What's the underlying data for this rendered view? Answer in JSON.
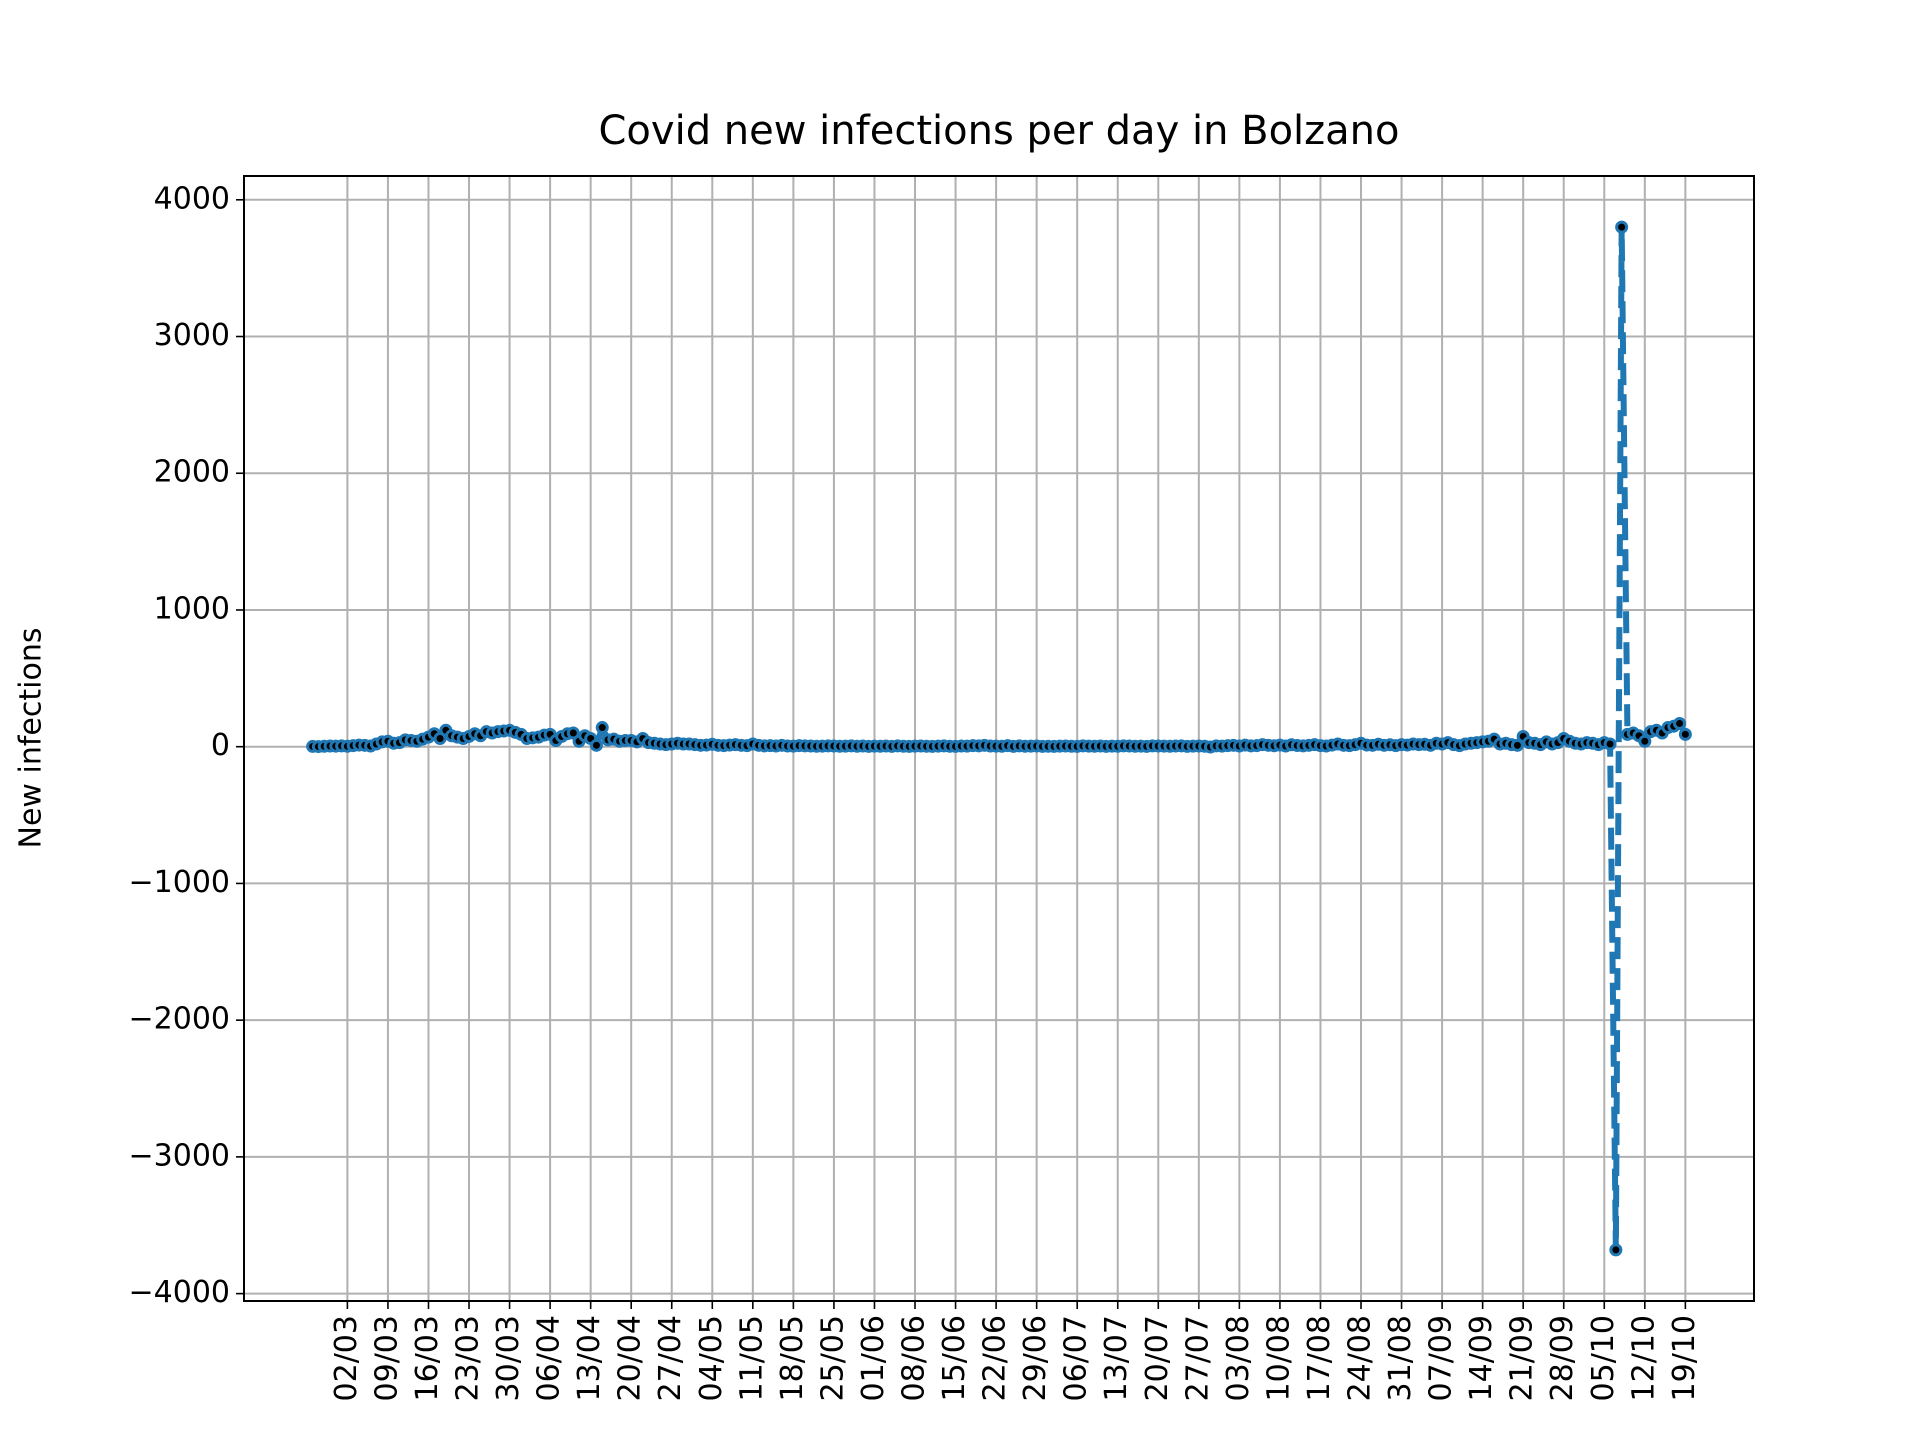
{
  "chart_data": {
    "type": "line",
    "title": "Covid new infections per day in Bolzano",
    "ylabel": "New infections",
    "x": [
      "25/02",
      "26/02",
      "27/02",
      "28/02",
      "29/02",
      "01/03",
      "02/03",
      "03/03",
      "04/03",
      "05/03",
      "06/03",
      "07/03",
      "08/03",
      "09/03",
      "10/03",
      "11/03",
      "12/03",
      "13/03",
      "14/03",
      "15/03",
      "16/03",
      "17/03",
      "18/03",
      "19/03",
      "20/03",
      "21/03",
      "22/03",
      "23/03",
      "24/03",
      "25/03",
      "26/03",
      "27/03",
      "28/03",
      "29/03",
      "30/03",
      "31/03",
      "01/04",
      "02/04",
      "03/04",
      "04/04",
      "05/04",
      "06/04",
      "07/04",
      "08/04",
      "09/04",
      "10/04",
      "11/04",
      "12/04",
      "13/04",
      "14/04",
      "15/04",
      "16/04",
      "17/04",
      "18/04",
      "19/04",
      "20/04",
      "21/04",
      "22/04",
      "23/04",
      "24/04",
      "25/04",
      "26/04",
      "27/04",
      "28/04",
      "29/04",
      "30/04",
      "01/05",
      "02/05",
      "03/05",
      "04/05",
      "05/05",
      "06/05",
      "07/05",
      "08/05",
      "09/05",
      "10/05",
      "11/05",
      "12/05",
      "13/05",
      "14/05",
      "15/05",
      "16/05",
      "17/05",
      "18/05",
      "19/05",
      "20/05",
      "21/05",
      "22/05",
      "23/05",
      "24/05",
      "25/05",
      "26/05",
      "27/05",
      "28/05",
      "29/05",
      "30/05",
      "31/05",
      "01/06",
      "02/06",
      "03/06",
      "04/06",
      "05/06",
      "06/06",
      "07/06",
      "08/06",
      "09/06",
      "10/06",
      "11/06",
      "12/06",
      "13/06",
      "14/06",
      "15/06",
      "16/06",
      "17/06",
      "18/06",
      "19/06",
      "20/06",
      "21/06",
      "22/06",
      "23/06",
      "24/06",
      "25/06",
      "26/06",
      "27/06",
      "28/06",
      "29/06",
      "30/06",
      "01/07",
      "02/07",
      "03/07",
      "04/07",
      "05/07",
      "06/07",
      "07/07",
      "08/07",
      "09/07",
      "10/07",
      "11/07",
      "12/07",
      "13/07",
      "14/07",
      "15/07",
      "16/07",
      "17/07",
      "18/07",
      "19/07",
      "20/07",
      "21/07",
      "22/07",
      "23/07",
      "24/07",
      "25/07",
      "26/07",
      "27/07",
      "28/07",
      "29/07",
      "30/07",
      "31/07",
      "01/08",
      "02/08",
      "03/08",
      "04/08",
      "05/08",
      "06/08",
      "07/08",
      "08/08",
      "09/08",
      "10/08",
      "11/08",
      "12/08",
      "13/08",
      "14/08",
      "15/08",
      "16/08",
      "17/08",
      "18/08",
      "19/08",
      "20/08",
      "21/08",
      "22/08",
      "23/08",
      "24/08",
      "25/08",
      "26/08",
      "27/08",
      "28/08",
      "29/08",
      "30/08",
      "31/08",
      "01/09",
      "02/09",
      "03/09",
      "04/09",
      "05/09",
      "06/09",
      "07/09",
      "08/09",
      "09/09",
      "10/09",
      "11/09",
      "12/09",
      "13/09",
      "14/09",
      "15/09",
      "16/09",
      "17/09",
      "18/09",
      "19/09",
      "20/09",
      "21/09",
      "22/09",
      "23/09",
      "24/09",
      "25/09",
      "26/09",
      "27/09",
      "28/09",
      "29/09",
      "30/09",
      "01/10",
      "02/10",
      "03/10",
      "04/10",
      "05/10",
      "06/10",
      "07/10",
      "08/10",
      "09/10",
      "10/10",
      "11/10",
      "12/10",
      "13/10",
      "14/10",
      "15/10",
      "16/10",
      "17/10",
      "18/10",
      "19/10"
    ],
    "series": [
      {
        "color": "#1f77b4",
        "marker_color": "#000000",
        "values": [
          2,
          1,
          3,
          5,
          4,
          6,
          3,
          8,
          12,
          10,
          5,
          20,
          35,
          40,
          25,
          30,
          50,
          45,
          40,
          55,
          70,
          95,
          60,
          120,
          80,
          70,
          60,
          75,
          95,
          80,
          110,
          100,
          110,
          115,
          120,
          105,
          90,
          60,
          65,
          70,
          85,
          90,
          45,
          75,
          95,
          100,
          40,
          80,
          60,
          10,
          140,
          50,
          55,
          40,
          45,
          45,
          35,
          60,
          30,
          25,
          20,
          15,
          20,
          25,
          20,
          20,
          15,
          10,
          12,
          18,
          10,
          8,
          12,
          15,
          10,
          8,
          20,
          10,
          6,
          8,
          5,
          10,
          5,
          4,
          8,
          6,
          5,
          3,
          4,
          6,
          5,
          3,
          4,
          6,
          3,
          5,
          2,
          4,
          3,
          5,
          2,
          6,
          3,
          2,
          4,
          5,
          3,
          2,
          4,
          6,
          3,
          2,
          5,
          4,
          8,
          6,
          10,
          5,
          4,
          3,
          8,
          2,
          6,
          3,
          4,
          5,
          2,
          3,
          2,
          4,
          5,
          3,
          2,
          6,
          4,
          3,
          5,
          2,
          4,
          3,
          6,
          5,
          3,
          4,
          2,
          6,
          5,
          4,
          3,
          5,
          6,
          2,
          4,
          5,
          3,
          -2,
          6,
          4,
          8,
          10,
          5,
          12,
          6,
          8,
          15,
          10,
          7,
          12,
          5,
          14,
          9,
          6,
          10,
          15,
          8,
          5,
          12,
          20,
          10,
          8,
          15,
          25,
          12,
          10,
          18,
          10,
          14,
          8,
          15,
          12,
          20,
          15,
          18,
          10,
          25,
          20,
          30,
          15,
          8,
          20,
          25,
          30,
          35,
          40,
          55,
          20,
          25,
          15,
          10,
          75,
          30,
          25,
          15,
          35,
          20,
          30,
          60,
          40,
          25,
          20,
          30,
          25,
          15,
          30,
          20,
          -3680,
          3800,
          90,
          100,
          80,
          40,
          110,
          120,
          100,
          140,
          150,
          170,
          90
        ]
      }
    ],
    "xticks": [
      "02/03",
      "09/03",
      "16/03",
      "23/03",
      "30/03",
      "06/04",
      "13/04",
      "20/04",
      "27/04",
      "04/05",
      "11/05",
      "18/05",
      "25/05",
      "01/06",
      "08/06",
      "15/06",
      "22/06",
      "29/06",
      "06/07",
      "13/07",
      "20/07",
      "27/07",
      "03/08",
      "10/08",
      "17/08",
      "24/08",
      "31/08",
      "07/09",
      "14/09",
      "21/09",
      "28/09",
      "05/10",
      "12/10",
      "19/10"
    ],
    "ylim": [
      -4054,
      4174
    ],
    "yticks": [
      {
        "value": -4000,
        "label": "−4000"
      },
      {
        "value": -3000,
        "label": "−3000"
      },
      {
        "value": -2000,
        "label": "−2000"
      },
      {
        "value": -1000,
        "label": "−1000"
      },
      0,
      1000,
      2000,
      3000,
      4000
    ],
    "grid": true,
    "line_style": "dashed"
  }
}
